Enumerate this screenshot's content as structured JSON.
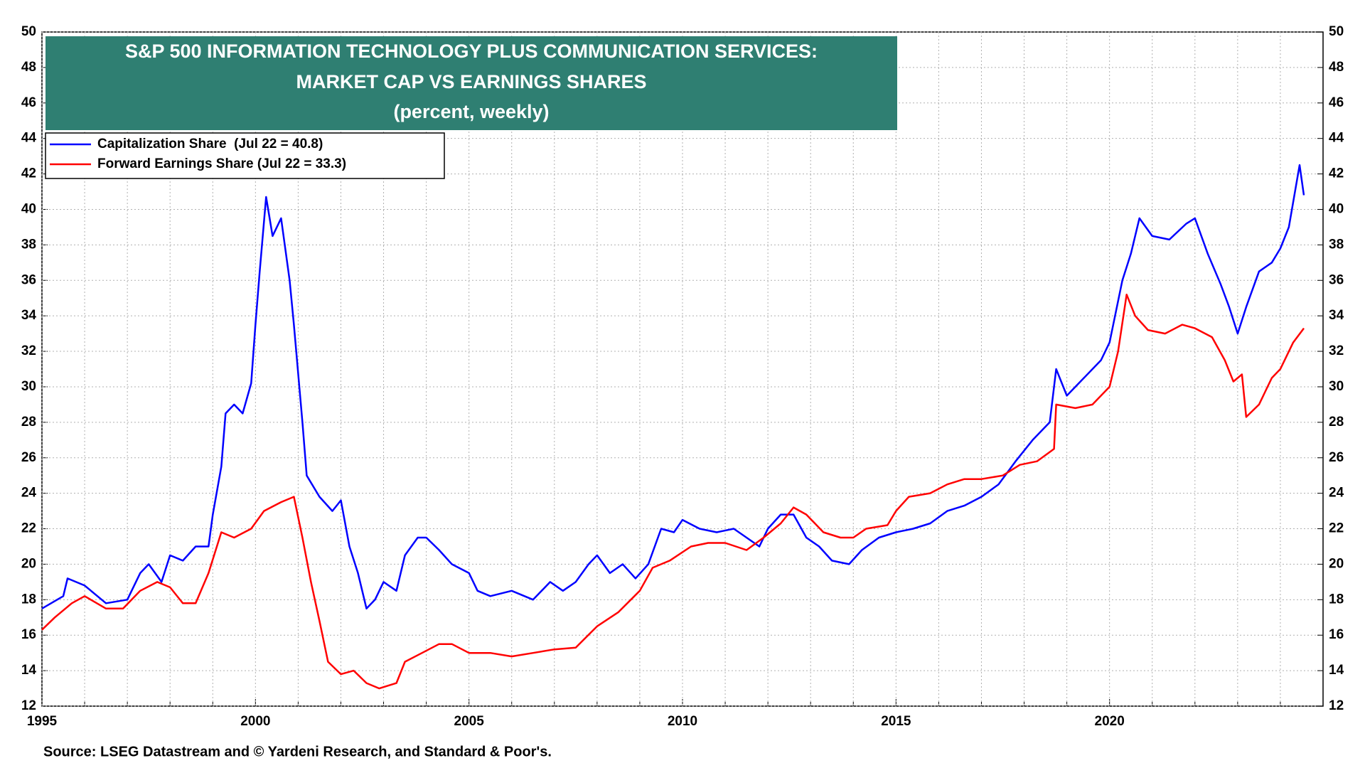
{
  "chart_data": {
    "type": "line",
    "title": [
      "S&P 500 INFORMATION TECHNOLOGY PLUS COMMUNICATION SERVICES:",
      "MARKET CAP VS EARNINGS SHARES"
    ],
    "subtitle": "(percent, weekly)",
    "source": "Source: LSEG Datastream and © Yardeni Research, and Standard & Poor's.",
    "title_box_color": "#2f7f72",
    "xlim": [
      1995,
      2025
    ],
    "xticks": [
      1995,
      2000,
      2005,
      2010,
      2015,
      2020
    ],
    "xminorticks": [
      1996,
      1997,
      1998,
      1999,
      2001,
      2002,
      2003,
      2004,
      2006,
      2007,
      2008,
      2009,
      2011,
      2012,
      2013,
      2014,
      2016,
      2017,
      2018,
      2019,
      2021,
      2022,
      2023,
      2024
    ],
    "ylim": [
      12,
      50
    ],
    "yticks": [
      12,
      14,
      16,
      18,
      20,
      22,
      24,
      26,
      28,
      30,
      32,
      34,
      36,
      38,
      40,
      42,
      44,
      46,
      48,
      50
    ],
    "y2lim": [
      12,
      50
    ],
    "y2ticks": [
      12,
      14,
      16,
      18,
      20,
      22,
      24,
      26,
      28,
      30,
      32,
      34,
      36,
      38,
      40,
      42,
      44,
      46,
      48,
      50
    ],
    "grid": true,
    "legend": "upper left",
    "series": [
      {
        "name": "Capitalization Share  (Jul 22 = 40.8)",
        "color": "#0000ff",
        "x": [
          1995.0,
          1995.5,
          1995.6,
          1996.0,
          1996.5,
          1997.0,
          1997.3,
          1997.5,
          1997.8,
          1998.0,
          1998.3,
          1998.6,
          1998.9,
          1999.0,
          1999.2,
          1999.3,
          1999.5,
          1999.7,
          1999.9,
          2000.0,
          2000.1,
          2000.25,
          2000.4,
          2000.6,
          2000.8,
          2000.9,
          2001.1,
          2001.2,
          2001.5,
          2001.8,
          2002.0,
          2002.2,
          2002.4,
          2002.6,
          2002.8,
          2003.0,
          2003.3,
          2003.5,
          2003.8,
          2004.0,
          2004.3,
          2004.6,
          2005.0,
          2005.2,
          2005.5,
          2006.0,
          2006.5,
          2006.9,
          2007.2,
          2007.5,
          2007.8,
          2008.0,
          2008.3,
          2008.6,
          2008.9,
          2009.2,
          2009.5,
          2009.8,
          2010.0,
          2010.4,
          2010.8,
          2011.2,
          2011.5,
          2011.8,
          2012.0,
          2012.3,
          2012.6,
          2012.9,
          2013.2,
          2013.5,
          2013.9,
          2014.2,
          2014.6,
          2015.0,
          2015.4,
          2015.8,
          2016.2,
          2016.6,
          2017.0,
          2017.4,
          2017.8,
          2018.2,
          2018.6,
          2018.75,
          2019.0,
          2019.4,
          2019.8,
          2020.0,
          2020.3,
          2020.5,
          2020.7,
          2021.0,
          2021.4,
          2021.8,
          2022.0,
          2022.3,
          2022.6,
          2022.8,
          2023.0,
          2023.2,
          2023.5,
          2023.8,
          2024.0,
          2024.2,
          2024.45,
          2024.55
        ],
        "values": [
          17.5,
          18.2,
          19.2,
          18.8,
          17.8,
          18.0,
          19.5,
          20.0,
          19.0,
          20.5,
          20.2,
          21.0,
          21.0,
          22.8,
          25.5,
          28.5,
          29.0,
          28.5,
          30.2,
          33.5,
          36.5,
          40.7,
          38.5,
          39.5,
          36.0,
          33.5,
          28.0,
          25.0,
          23.8,
          23.0,
          23.6,
          21.0,
          19.5,
          17.5,
          18.0,
          19.0,
          18.5,
          20.5,
          21.5,
          21.5,
          20.8,
          20.0,
          19.5,
          18.5,
          18.2,
          18.5,
          18.0,
          19.0,
          18.5,
          19.0,
          20.0,
          20.5,
          19.5,
          20.0,
          19.2,
          20.0,
          22.0,
          21.8,
          22.5,
          22.0,
          21.8,
          22.0,
          21.5,
          21.0,
          22.0,
          22.8,
          22.8,
          21.5,
          21.0,
          20.2,
          20.0,
          20.8,
          21.5,
          21.8,
          22.0,
          22.3,
          23.0,
          23.3,
          23.8,
          24.5,
          25.8,
          27.0,
          28.0,
          31.0,
          29.5,
          30.5,
          31.5,
          32.5,
          36.0,
          37.5,
          39.5,
          38.5,
          38.3,
          39.2,
          39.5,
          37.5,
          35.8,
          34.5,
          33.0,
          34.5,
          36.5,
          37.0,
          37.8,
          39.0,
          42.5,
          40.8
        ]
      },
      {
        "name": "Forward Earnings Share (Jul 22 = 33.3)",
        "color": "#ff0000",
        "x": [
          1995.0,
          1995.3,
          1995.7,
          1996.0,
          1996.5,
          1996.9,
          1997.3,
          1997.7,
          1998.0,
          1998.3,
          1998.6,
          1998.9,
          1999.2,
          1999.5,
          1999.9,
          2000.2,
          2000.6,
          2000.9,
          2001.1,
          2001.3,
          2001.5,
          2001.7,
          2002.0,
          2002.3,
          2002.6,
          2002.9,
          2003.3,
          2003.5,
          2003.9,
          2004.3,
          2004.6,
          2005.0,
          2005.5,
          2006.0,
          2006.5,
          2007.0,
          2007.5,
          2008.0,
          2008.5,
          2009.0,
          2009.3,
          2009.7,
          2010.2,
          2010.6,
          2011.0,
          2011.5,
          2011.9,
          2012.3,
          2012.6,
          2012.9,
          2013.3,
          2013.7,
          2014.0,
          2014.3,
          2014.8,
          2015.0,
          2015.3,
          2015.8,
          2016.2,
          2016.6,
          2017.0,
          2017.5,
          2017.9,
          2018.3,
          2018.7,
          2018.75,
          2019.2,
          2019.6,
          2020.0,
          2020.2,
          2020.4,
          2020.6,
          2020.9,
          2021.3,
          2021.7,
          2022.0,
          2022.4,
          2022.7,
          2022.9,
          2023.1,
          2023.2,
          2023.5,
          2023.8,
          2024.0,
          2024.3,
          2024.55
        ],
        "values": [
          16.3,
          17.0,
          17.8,
          18.2,
          17.5,
          17.5,
          18.5,
          19.0,
          18.7,
          17.8,
          17.8,
          19.5,
          21.8,
          21.5,
          22.0,
          23.0,
          23.5,
          23.8,
          21.5,
          19.0,
          16.8,
          14.5,
          13.8,
          14.0,
          13.3,
          13.0,
          13.3,
          14.5,
          15.0,
          15.5,
          15.5,
          15.0,
          15.0,
          14.8,
          15.0,
          15.2,
          15.3,
          16.5,
          17.3,
          18.5,
          19.8,
          20.2,
          21.0,
          21.2,
          21.2,
          20.8,
          21.5,
          22.3,
          23.2,
          22.8,
          21.8,
          21.5,
          21.5,
          22.0,
          22.2,
          23.0,
          23.8,
          24.0,
          24.5,
          24.8,
          24.8,
          25.0,
          25.6,
          25.8,
          26.5,
          29.0,
          28.8,
          29.0,
          30.0,
          32.0,
          35.2,
          34.0,
          33.2,
          33.0,
          33.5,
          33.3,
          32.8,
          31.5,
          30.3,
          30.7,
          28.3,
          29.0,
          30.5,
          31.0,
          32.5,
          33.3
        ]
      }
    ]
  }
}
